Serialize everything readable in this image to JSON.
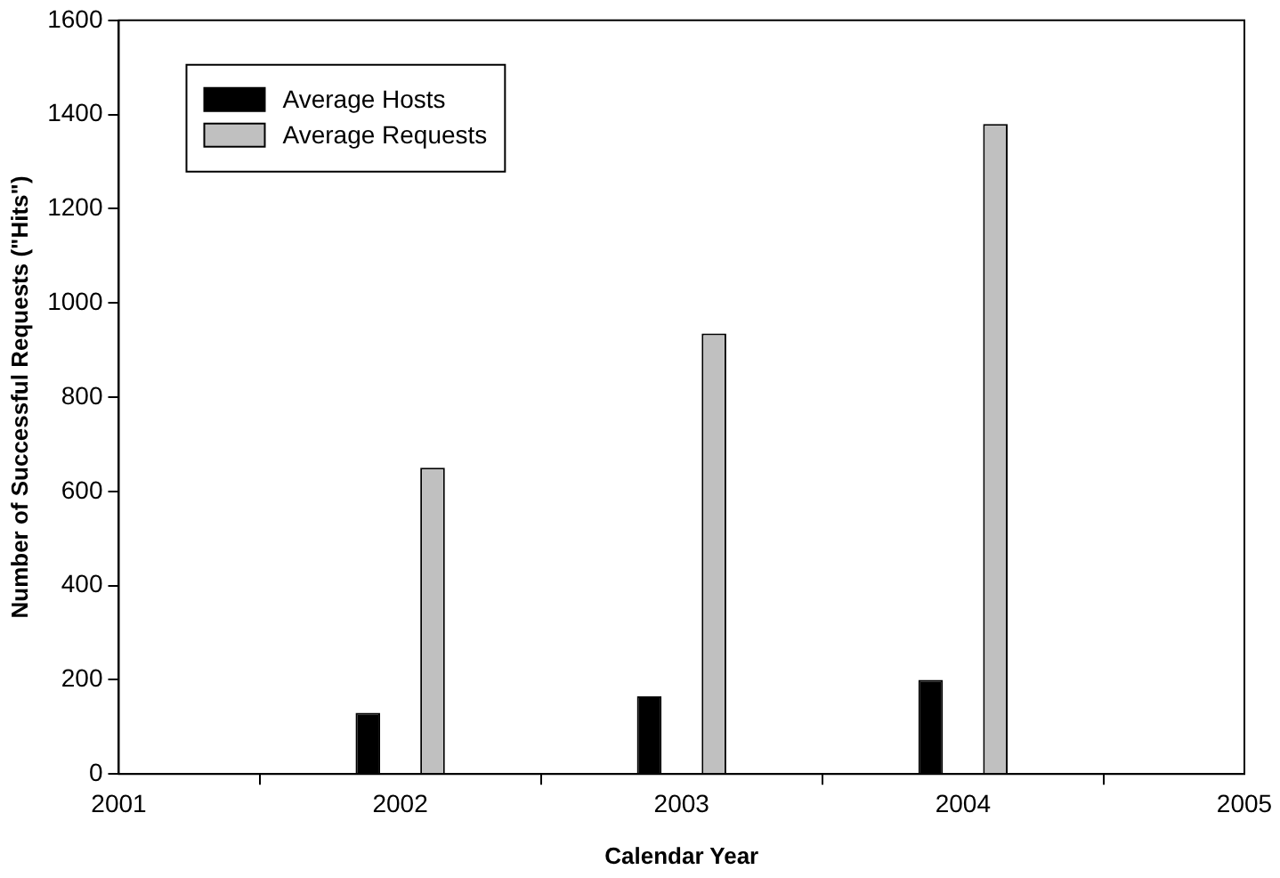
{
  "chart_data": {
    "type": "bar",
    "xlabel": "Calendar Year",
    "ylabel": "Number of Successful Requests (\"Hits\")",
    "x": [
      2002,
      2003,
      2004
    ],
    "series": [
      {
        "name": "Average Hosts",
        "color": "#000000",
        "values": [
          130,
          165,
          200
        ]
      },
      {
        "name": "Average Requests",
        "color": "#c0c0c0",
        "values": [
          650,
          935,
          1380
        ]
      }
    ],
    "xlim": [
      2001,
      2005
    ],
    "xticks": [
      2001,
      2002,
      2003,
      2004,
      2005
    ],
    "ylim": [
      0,
      1600
    ],
    "yticks": [
      0,
      200,
      400,
      600,
      800,
      1000,
      1200,
      1400,
      1600
    ],
    "grid": false,
    "legend": "top left"
  }
}
